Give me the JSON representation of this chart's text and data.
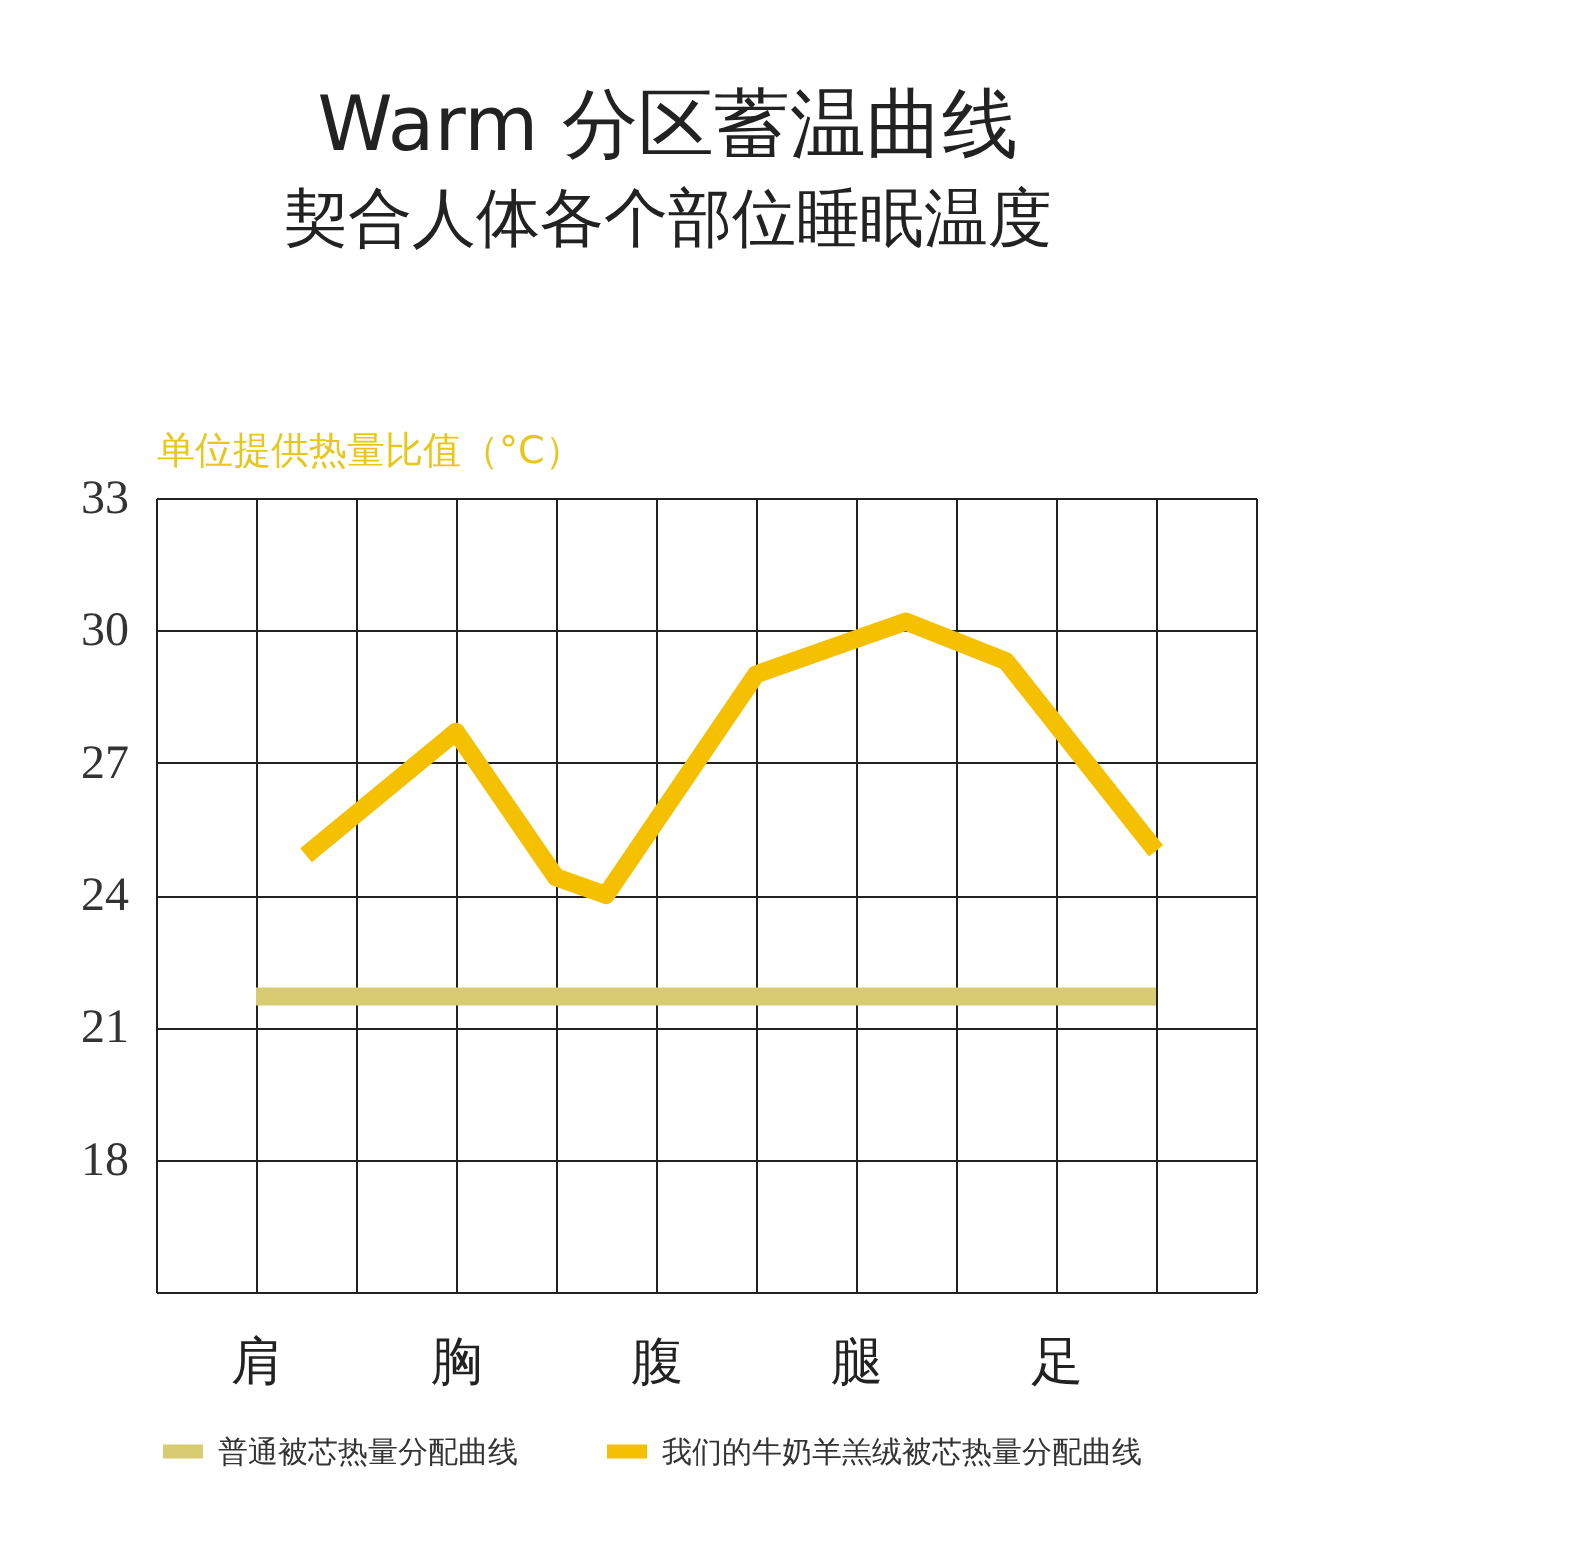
{
  "chart_data": {
    "type": "line",
    "title": "Warm 分区蓄温曲线",
    "subtitle": "契合人体各个部位睡眠温度",
    "ylabel": "单位提供热量比值（°C）",
    "categories": [
      null,
      null,
      "肩",
      null,
      null,
      null,
      "胸",
      null,
      null,
      null,
      "腹",
      null,
      null,
      null,
      "腿",
      null,
      null,
      null,
      "足",
      null,
      null,
      null,
      null
    ],
    "ylim": [
      15,
      33
    ],
    "yticks": [
      {
        "value": 15,
        "label": null
      },
      18,
      21,
      24,
      27,
      30,
      33
    ],
    "grid": true,
    "legend": "bottom",
    "series": [
      {
        "name": "普通被芯热量分配曲线",
        "color": "#d8cc72",
        "values": [
          null,
          null,
          21.7,
          null,
          null,
          null,
          null,
          null,
          null,
          null,
          null,
          null,
          null,
          null,
          null,
          null,
          null,
          null,
          null,
          null,
          21.7,
          null,
          null
        ]
      },
      {
        "name": "我们的牛奶羊羔绒被芯热量分配曲线",
        "color": "#f5c000",
        "values": [
          null,
          null,
          null,
          24.9,
          null,
          null,
          27.7,
          null,
          24.4,
          24.0,
          null,
          null,
          29.0,
          null,
          null,
          30.2,
          null,
          29.3,
          null,
          null,
          25.0,
          null,
          null
        ]
      }
    ]
  }
}
